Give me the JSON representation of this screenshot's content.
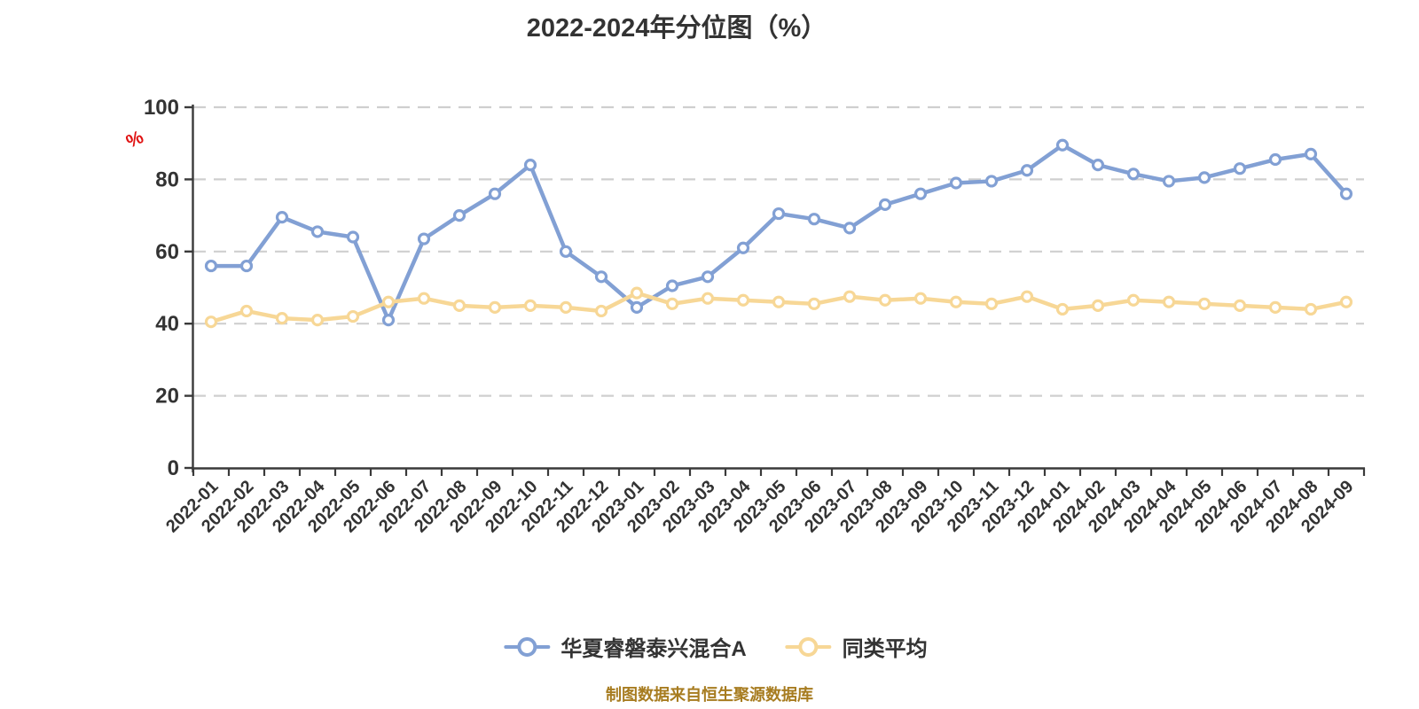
{
  "title": "2022-2024年分位图（%）",
  "y_axis_unit": "%",
  "caption": "制图数据来自恒生聚源数据库",
  "colors": {
    "series_fund": "#82a0d4",
    "series_peer": "#f7d796",
    "axis": "#3a3a3a",
    "grid": "#cfcfcf",
    "label_text": "#333333",
    "unit_mark": "#e01212",
    "caption_text": "#a77c20",
    "marker_fill": "#ffffff"
  },
  "chart_data": {
    "type": "line",
    "title": "2022-2024年分位图（%）",
    "xlabel": "",
    "ylabel": "%",
    "ylim": [
      0,
      100
    ],
    "yticks": [
      0,
      20,
      40,
      60,
      80,
      100
    ],
    "grid": "horizontal dashed",
    "legend_position": "bottom",
    "categories": [
      "2022-01",
      "2022-02",
      "2022-03",
      "2022-04",
      "2022-05",
      "2022-06",
      "2022-07",
      "2022-08",
      "2022-09",
      "2022-10",
      "2022-11",
      "2022-12",
      "2023-01",
      "2023-02",
      "2023-03",
      "2023-04",
      "2023-05",
      "2023-06",
      "2023-07",
      "2023-08",
      "2023-09",
      "2023-10",
      "2023-11",
      "2023-12",
      "2024-01",
      "2024-02",
      "2024-03",
      "2024-04",
      "2024-05",
      "2024-06",
      "2024-07",
      "2024-08",
      "2024-09"
    ],
    "series": [
      {
        "name": "华夏睿磐泰兴混合A",
        "color": "#82a0d4",
        "values": [
          56,
          56,
          69.5,
          65.5,
          64,
          41,
          63.5,
          70,
          76,
          84,
          60,
          53,
          44.5,
          50.5,
          53,
          61,
          70.5,
          69,
          66.5,
          73,
          76,
          79,
          79.5,
          82.5,
          89.5,
          84,
          81.5,
          79.5,
          80.5,
          83,
          85.5,
          87,
          76
        ]
      },
      {
        "name": "同类平均",
        "color": "#f7d796",
        "values": [
          40.5,
          43.5,
          41.5,
          41,
          42,
          46,
          47,
          45,
          44.5,
          45,
          44.5,
          43.5,
          48.5,
          45.5,
          47,
          46.5,
          46,
          45.5,
          47.5,
          46.5,
          47,
          46,
          45.5,
          47.5,
          44,
          45,
          46.5,
          46,
          45.5,
          45,
          44.5,
          44,
          46
        ]
      }
    ]
  }
}
